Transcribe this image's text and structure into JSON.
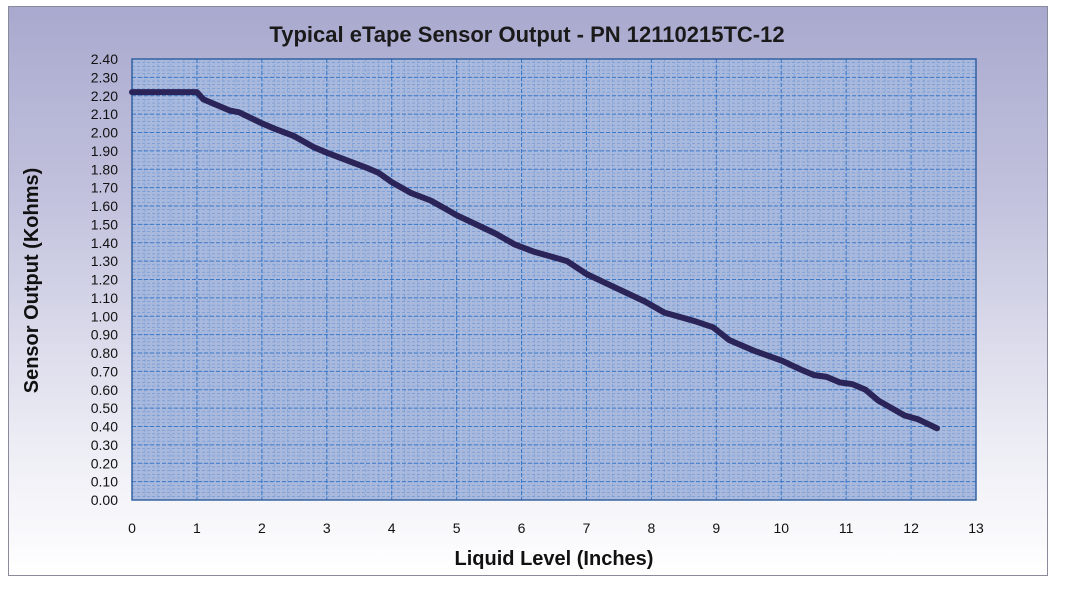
{
  "chart_data": {
    "type": "line",
    "title": "Typical eTape Sensor Output  - PN 12110215TC-12",
    "xlabel": "Liquid Level (Inches)",
    "ylabel": "Sensor Output (Kohms)",
    "xlim": [
      0,
      13
    ],
    "ylim": [
      0,
      2.4
    ],
    "x_ticks": [
      "0",
      "1",
      "2",
      "3",
      "4",
      "5",
      "6",
      "7",
      "8",
      "9",
      "10",
      "11",
      "12",
      "13"
    ],
    "y_ticks": [
      "0.00",
      "0.10",
      "0.20",
      "0.30",
      "0.40",
      "0.50",
      "0.60",
      "0.70",
      "0.80",
      "0.90",
      "1.00",
      "1.10",
      "1.20",
      "1.30",
      "1.40",
      "1.50",
      "1.60",
      "1.70",
      "1.80",
      "1.90",
      "2.00",
      "2.10",
      "2.20",
      "2.30",
      "2.40"
    ],
    "grid": true,
    "series_color": "#2b2458",
    "plot_background": "#a9b9dd",
    "grid_color": "#3a78c8",
    "series": [
      {
        "x": [
          0,
          0.5,
          0.9,
          1.0,
          1.1,
          1.3,
          1.5,
          1.65,
          2.0,
          2.2,
          2.5,
          2.8,
          3.0,
          3.3,
          3.6,
          3.8,
          4.0,
          4.3,
          4.6,
          4.8,
          5.0,
          5.3,
          5.6,
          5.9,
          6.2,
          6.5,
          6.7,
          7.0,
          7.3,
          7.6,
          7.9,
          8.2,
          8.4,
          8.7,
          8.95,
          9.2,
          9.6,
          10.0,
          10.3,
          10.5,
          10.7,
          10.9,
          11.1,
          11.3,
          11.5,
          11.7,
          11.9,
          12.1,
          12.4
        ],
        "y": [
          2.22,
          2.22,
          2.22,
          2.22,
          2.18,
          2.15,
          2.12,
          2.11,
          2.05,
          2.02,
          1.98,
          1.92,
          1.89,
          1.85,
          1.81,
          1.78,
          1.73,
          1.67,
          1.63,
          1.59,
          1.55,
          1.5,
          1.45,
          1.39,
          1.35,
          1.32,
          1.3,
          1.23,
          1.18,
          1.13,
          1.08,
          1.02,
          1.0,
          0.97,
          0.94,
          0.87,
          0.81,
          0.76,
          0.71,
          0.68,
          0.67,
          0.64,
          0.63,
          0.6,
          0.54,
          0.5,
          0.46,
          0.44,
          0.39
        ]
      }
    ]
  }
}
